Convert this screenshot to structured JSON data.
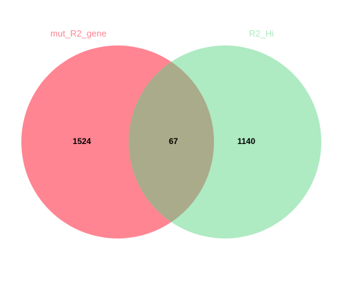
{
  "venn": {
    "sets": [
      {
        "name": "mut_R2_gene",
        "color": "#ff8592"
      },
      {
        "name": "R2_Hi",
        "color": "#aeeac2"
      }
    ],
    "overlap_color": "#aaab8a",
    "counts": {
      "left_only": "1524",
      "intersection": "67",
      "right_only": "1140"
    }
  }
}
